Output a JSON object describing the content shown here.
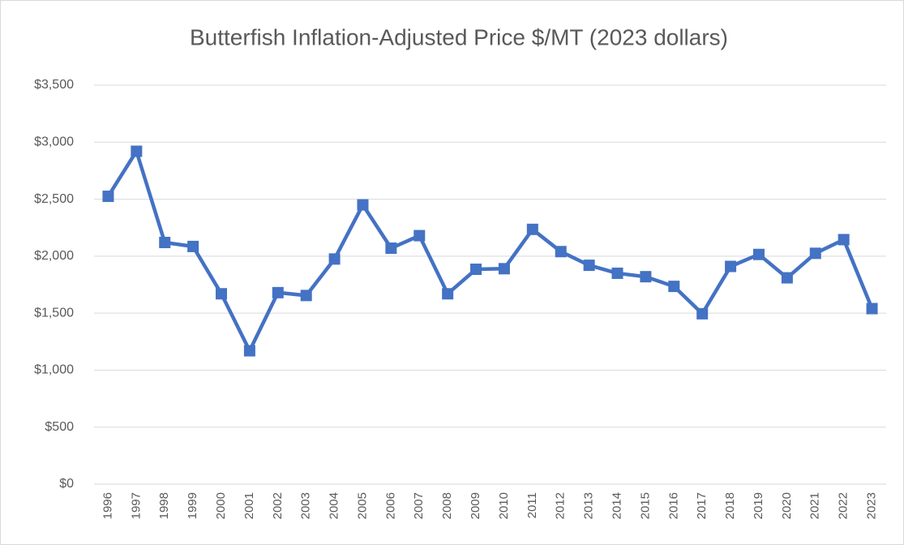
{
  "chart_data": {
    "type": "line",
    "title": "Butterfish Inflation-Adjusted Price $/MT (2023 dollars)",
    "categories": [
      "1996",
      "1997",
      "1998",
      "1999",
      "2000",
      "2001",
      "2002",
      "2003",
      "2004",
      "2005",
      "2006",
      "2007",
      "2008",
      "2009",
      "2010",
      "2011",
      "2012",
      "2013",
      "2014",
      "2015",
      "2016",
      "2017",
      "2018",
      "2019",
      "2020",
      "2021",
      "2022",
      "2023"
    ],
    "values": [
      2525,
      2920,
      2120,
      2085,
      1670,
      1170,
      1680,
      1655,
      1975,
      2450,
      2070,
      2180,
      1670,
      1885,
      1890,
      2235,
      2040,
      1920,
      1850,
      1820,
      1735,
      1495,
      1910,
      2015,
      1810,
      2025,
      2145,
      1540
    ],
    "color": "#4472c4",
    "ylim": [
      0,
      3500
    ],
    "yticks": [
      {
        "value": 0,
        "label": "$0"
      },
      {
        "value": 500,
        "label": "$500"
      },
      {
        "value": 1000,
        "label": "$1,000"
      },
      {
        "value": 1500,
        "label": "$1,500"
      },
      {
        "value": 2000,
        "label": "$2,000"
      },
      {
        "value": 2500,
        "label": "$2,500"
      },
      {
        "value": 3000,
        "label": "$3,000"
      },
      {
        "value": 3500,
        "label": "$3,500"
      }
    ],
    "grid": true
  }
}
